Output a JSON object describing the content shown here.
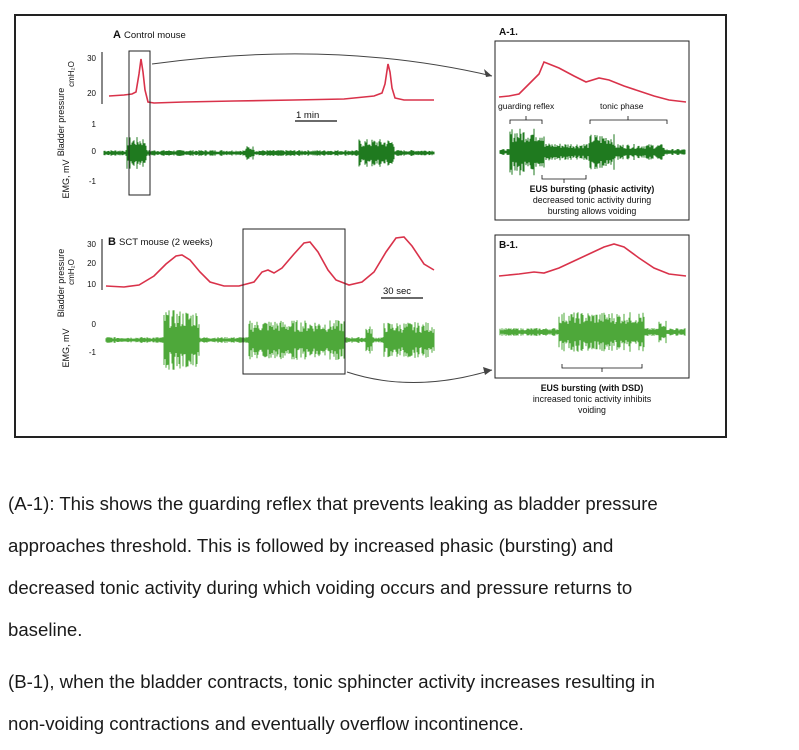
{
  "figure": {
    "panel_a": {
      "letter": "A",
      "title": "Control mouse",
      "pressure_axis_label": "Bladder pressure",
      "pressure_axis_unit": "cmH₂O",
      "emg_axis_label": "EMG, mV",
      "pressure_ticks": [
        "30",
        "20"
      ],
      "emg_ticks": [
        "1",
        "0",
        "-1"
      ],
      "scale_label": "1 min"
    },
    "panel_a1": {
      "title": "A-1.",
      "guarding_label": "guarding reflex",
      "tonic_label": "tonic phase",
      "caption_bold": "EUS bursting (phasic activity)",
      "caption_line1": "decreased tonic activity during",
      "caption_line2": "bursting allows voiding"
    },
    "panel_b": {
      "letter": "B",
      "title": "SCT mouse (2 weeks)",
      "pressure_axis_label": "Bladder pressure",
      "pressure_axis_unit": "cmH₂O",
      "emg_axis_label": "EMG, mV",
      "pressure_ticks": [
        "30",
        "20",
        "10"
      ],
      "emg_ticks": [
        "0",
        "-1"
      ],
      "scale_label": "30 sec"
    },
    "panel_b1": {
      "title": "B-1.",
      "caption_bold": "EUS bursting (with DSD)",
      "caption_line1": "increased tonic activity inhibits",
      "caption_line2": "voiding"
    },
    "colors": {
      "pressure": "#d9324a",
      "emg": "#1f7a1f",
      "emg_light": "#4ea83a"
    }
  },
  "caption": {
    "para1_lines": [
      "(A-1): This shows the guarding reflex that prevents leaking as bladder pressure",
      "approaches threshold. This is followed by increased phasic (bursting) and",
      "decreased tonic activity during which voiding occurs and pressure returns to",
      "baseline."
    ],
    "para2_lines": [
      "(B-1), when the bladder contracts, tonic sphincter activity increases resulting in",
      "non-voiding contractions and eventually overflow incontinence."
    ]
  }
}
